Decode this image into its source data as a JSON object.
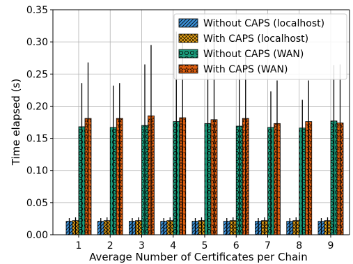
{
  "chart_data": {
    "type": "bar",
    "xlabel": "Average Number of Certificates per Chain",
    "ylabel": "Time elapsed (s)",
    "ylim": [
      0,
      0.35
    ],
    "yticks": [
      0.0,
      0.05,
      0.1,
      0.15,
      0.2,
      0.25,
      0.3,
      0.35
    ],
    "ytick_labels": [
      "0.00",
      "0.05",
      "0.10",
      "0.15",
      "0.20",
      "0.25",
      "0.30",
      "0.35"
    ],
    "categories": [
      "1",
      "2",
      "3",
      "4",
      "5",
      "6",
      "7",
      "8",
      "9"
    ],
    "grid": true,
    "legend_position": "top-right",
    "series": [
      {
        "name": "Without CAPS (localhost)",
        "color": "#3b8fd4",
        "hatch": "diagonal",
        "values": [
          0.021,
          0.021,
          0.021,
          0.021,
          0.021,
          0.021,
          0.021,
          0.021,
          0.021
        ],
        "error_upper": [
          0.026,
          0.026,
          0.026,
          0.026,
          0.026,
          0.026,
          0.026,
          0.026,
          0.026
        ]
      },
      {
        "name": "With CAPS (localhost)",
        "color": "#e8a317",
        "hatch": "crosshatch",
        "values": [
          0.022,
          0.022,
          0.022,
          0.022,
          0.022,
          0.022,
          0.022,
          0.022,
          0.022
        ],
        "error_upper": [
          0.027,
          0.027,
          0.027,
          0.027,
          0.027,
          0.027,
          0.027,
          0.027,
          0.027
        ]
      },
      {
        "name": "Without CAPS (WAN)",
        "color": "#1a9a7a",
        "hatch": "circles",
        "values": [
          0.168,
          0.167,
          0.17,
          0.176,
          0.173,
          0.169,
          0.167,
          0.166,
          0.177
        ],
        "error_upper": [
          0.236,
          0.232,
          0.265,
          0.316,
          0.29,
          0.26,
          0.223,
          0.21,
          0.264
        ]
      },
      {
        "name": "With CAPS (WAN)",
        "color": "#e06010",
        "hatch": "stars",
        "values": [
          0.181,
          0.181,
          0.185,
          0.182,
          0.179,
          0.181,
          0.173,
          0.176,
          0.174
        ],
        "error_upper": [
          0.268,
          0.236,
          0.295,
          0.31,
          0.33,
          0.28,
          0.24,
          0.24,
          0.265
        ]
      }
    ]
  }
}
